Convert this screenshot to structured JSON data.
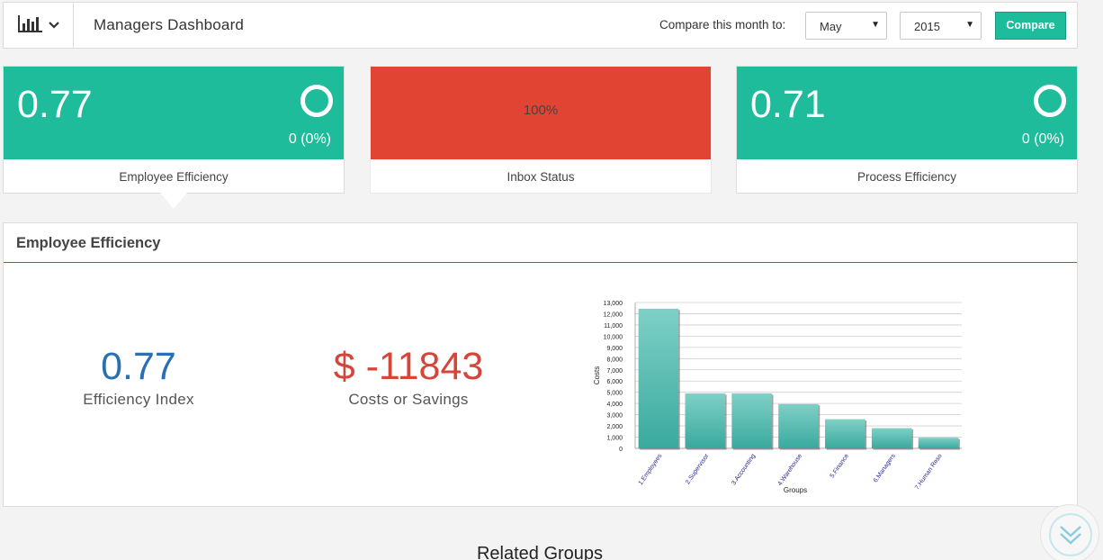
{
  "header": {
    "menu_icon": "bar-chart-icon",
    "menu_chevron": "chevron-down-icon",
    "title": "Managers Dashboard",
    "compare_label": "Compare this month to:",
    "month_select": "May",
    "year_select": "2015",
    "compare_button": "Compare"
  },
  "cards": [
    {
      "value": "0.77",
      "change": "0 (0%)",
      "label": "Employee Efficiency",
      "color": "#1fbc9c"
    },
    {
      "value": "100%",
      "label": "Inbox Status",
      "color": "#e14433"
    },
    {
      "value": "0.71",
      "change": "0 (0%)",
      "label": "Process Efficiency",
      "color": "#1fbc9c"
    }
  ],
  "panel": {
    "title": "Employee Efficiency",
    "efficiency_index": {
      "value": "0.77",
      "label": "Efficiency Index",
      "color": "#2a6fb3"
    },
    "costs": {
      "value": "$ -11843",
      "label": "Costs or Savings",
      "color": "#d6453a"
    }
  },
  "chart_data": {
    "type": "bar",
    "categories": [
      "1.Employees",
      "2.Supervisor",
      "3.Accounting",
      "4.Warehouse",
      "5.Finance",
      "6.Managers",
      "7.Human Reso"
    ],
    "values": [
      12450,
      4900,
      4900,
      3950,
      2600,
      1800,
      950
    ],
    "xlabel": "Groups",
    "ylabel": "Costs",
    "ylim": [
      0,
      13000
    ],
    "yticks": [
      "0",
      "1,000",
      "2,000",
      "3,000",
      "4,000",
      "5,000",
      "6,000",
      "7,000",
      "8,000",
      "9,000",
      "10,000",
      "11,000",
      "12,000",
      "13,000"
    ],
    "bar_color": "#4fbdb1",
    "grid": true
  },
  "related_title": "Related Groups",
  "scroll_icon": "double-chevron-down-icon"
}
